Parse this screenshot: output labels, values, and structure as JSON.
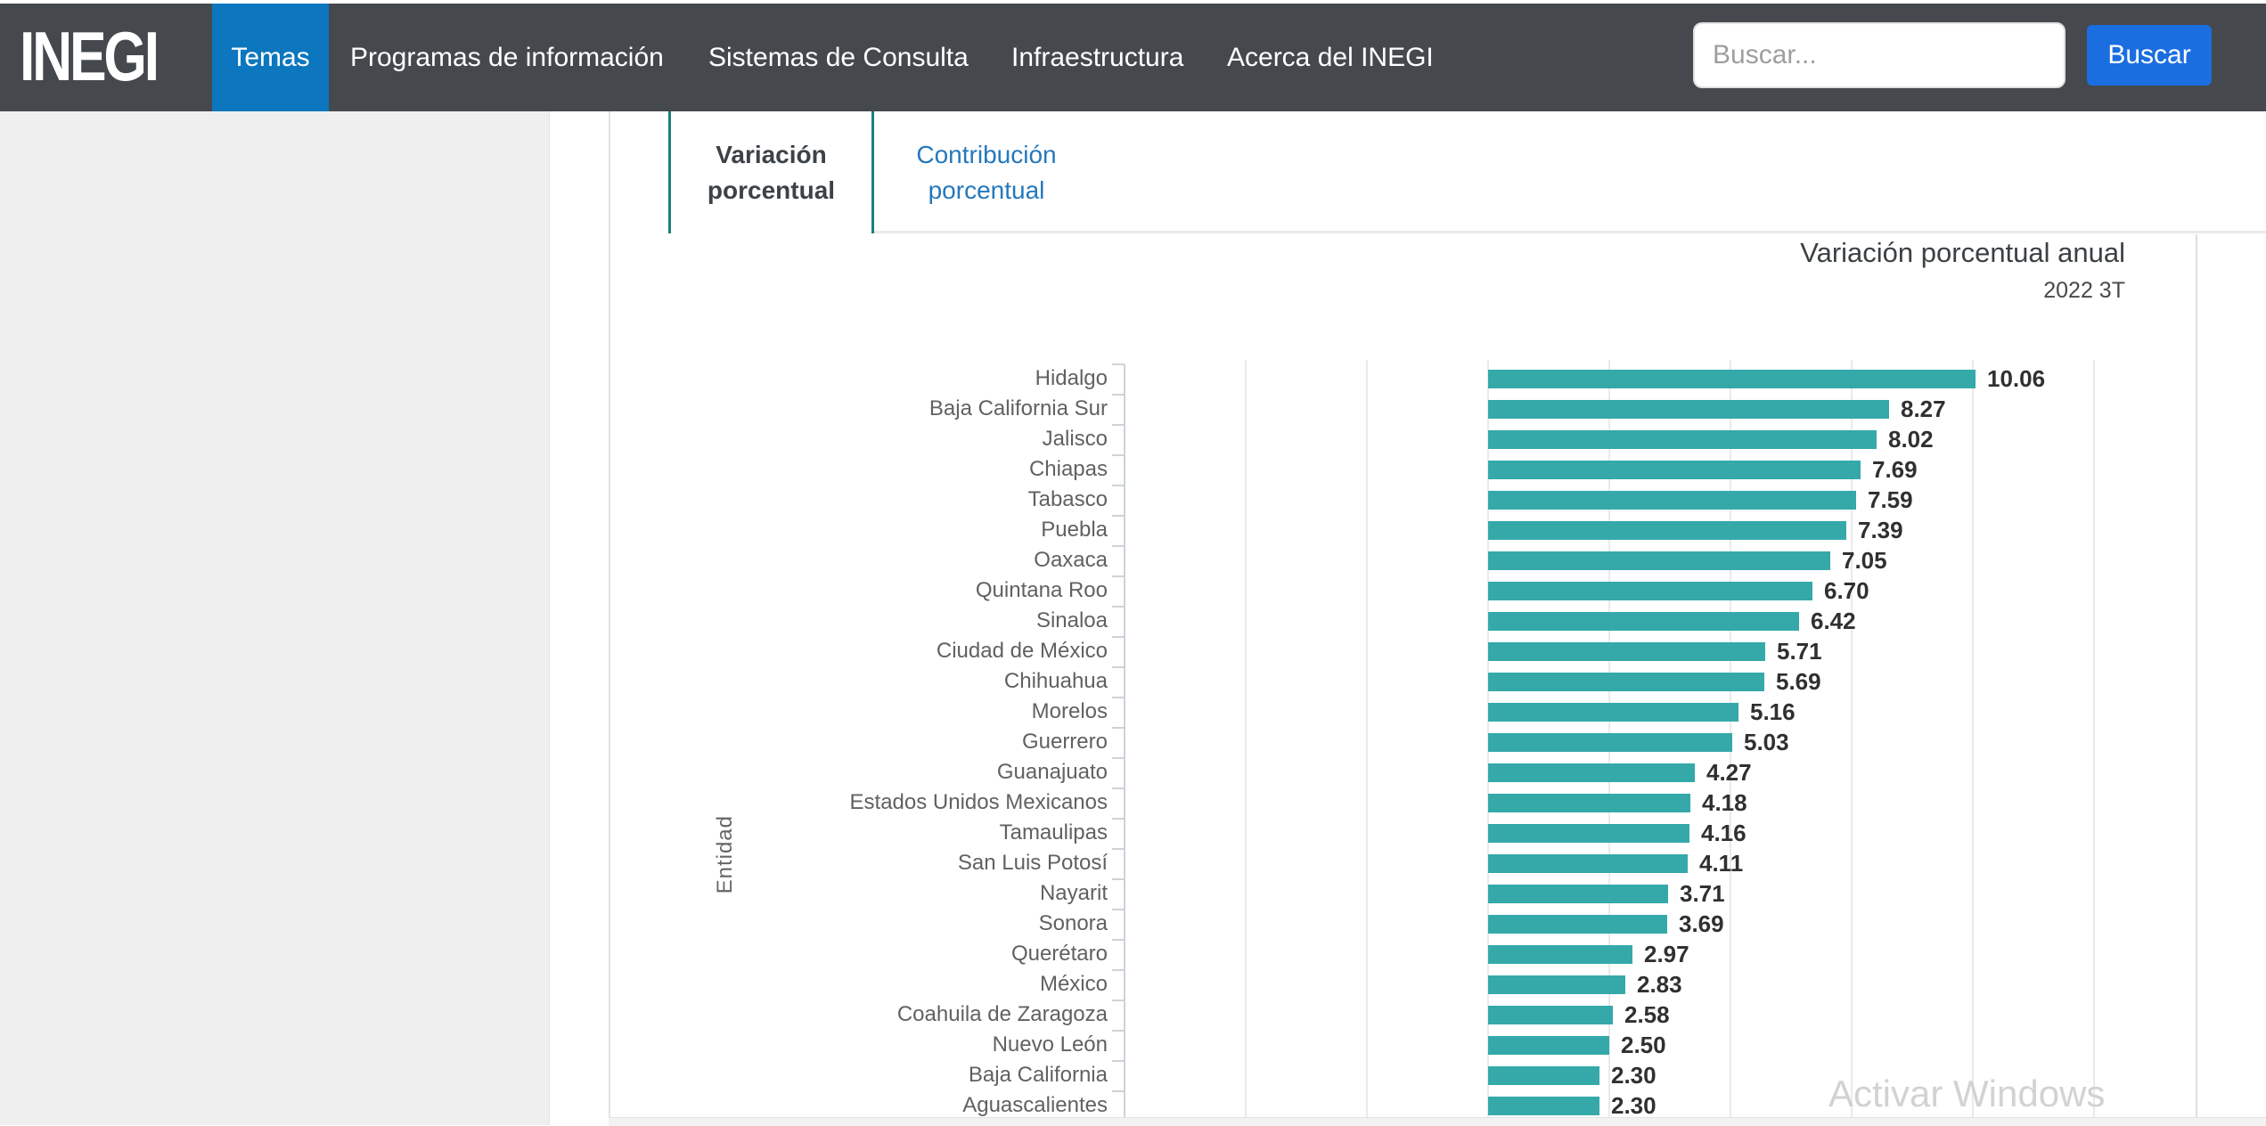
{
  "nav": {
    "logo": "INEGI",
    "items": [
      {
        "label": "Temas",
        "active": true
      },
      {
        "label": "Programas de información",
        "active": false
      },
      {
        "label": "Sistemas de Consulta",
        "active": false
      },
      {
        "label": "Infraestructura",
        "active": false
      },
      {
        "label": "Acerca del INEGI",
        "active": false
      }
    ],
    "search": {
      "placeholder": "Buscar...",
      "button_label": "Buscar"
    }
  },
  "tabs": [
    {
      "label": "Variación porcentual",
      "active": true
    },
    {
      "label": "Contribución porcentual",
      "active": false
    }
  ],
  "watermark": "Activar Windows",
  "colors": {
    "nav_background": "#45494e",
    "nav_active_blue": "#0c77bf",
    "search_button_blue": "#1b6ee0",
    "tab_accent_teal": "#1c7e7e",
    "tab_link_blue": "#2478bd",
    "bar_teal": "#35a9a9",
    "sidebar_gray": "#efefef"
  },
  "chart_data": {
    "type": "bar",
    "orientation": "horizontal",
    "title": "Variación porcentual anual",
    "subtitle": "2022 3T",
    "ylabel": "Entidad",
    "categories": [
      "Hidalgo",
      "Baja California Sur",
      "Jalisco",
      "Chiapas",
      "Tabasco",
      "Puebla",
      "Oaxaca",
      "Quintana Roo",
      "Sinaloa",
      "Ciudad de México",
      "Chihuahua",
      "Morelos",
      "Guerrero",
      "Guanajuato",
      "Estados Unidos Mexicanos",
      "Tamaulipas",
      "San Luis Potosí",
      "Nayarit",
      "Sonora",
      "Querétaro",
      "México",
      "Coahuila de Zaragoza",
      "Nuevo León",
      "Baja California",
      "Aguascalientes"
    ],
    "values": [
      10.06,
      8.27,
      8.02,
      7.69,
      7.59,
      7.39,
      7.05,
      6.7,
      6.42,
      5.71,
      5.69,
      5.16,
      5.03,
      4.27,
      4.18,
      4.16,
      4.11,
      3.71,
      3.69,
      2.97,
      2.83,
      2.58,
      2.5,
      2.3,
      2.3
    ],
    "value_decimals": 2,
    "xlim": [
      -7.5,
      16
    ],
    "gridlines_at": [
      -5,
      -2.5,
      0,
      2.5,
      5,
      7.5,
      10,
      12.5
    ],
    "grid": true,
    "legend": "none",
    "bar_color": "#35a9a9"
  }
}
